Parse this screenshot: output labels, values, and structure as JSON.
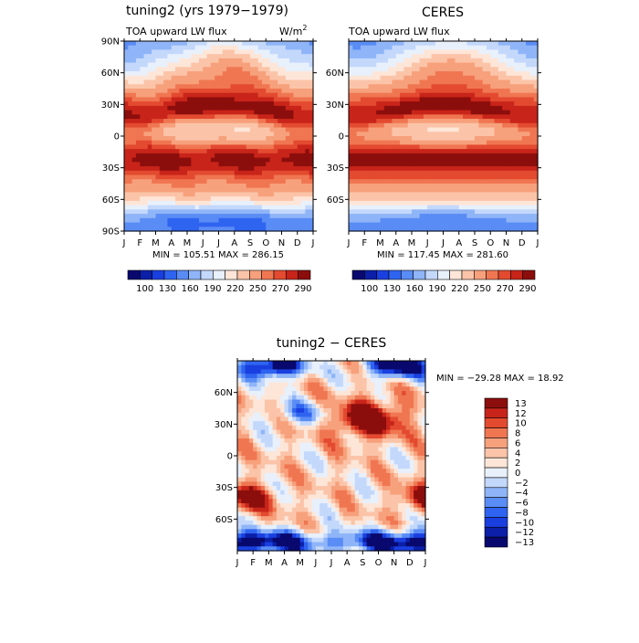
{
  "chart_data": [
    {
      "type": "heatmap",
      "title": "tuning2 (yrs 1979−1979)",
      "subtitle_left": "TOA upward LW flux",
      "units_text": "W/m",
      "units_superscript": "2",
      "x_tick_labels": [
        "J",
        "F",
        "M",
        "A",
        "M",
        "J",
        "J",
        "A",
        "S",
        "O",
        "N",
        "D",
        "J"
      ],
      "y_tick_labels": [
        "90N",
        "60N",
        "30N",
        "0",
        "30S",
        "60S",
        "90S"
      ],
      "y_values": [
        90,
        60,
        30,
        0,
        -30,
        -60,
        -90
      ],
      "stats_text": "MIN = 105.51  MAX = 286.15",
      "min": 105.51,
      "max": 286.15,
      "colorbar_labels": [
        "100",
        "130",
        "160",
        "190",
        "220",
        "250",
        "270",
        "290"
      ],
      "levels": [
        100,
        115,
        130,
        145,
        160,
        175,
        190,
        205,
        220,
        235,
        250,
        260,
        270,
        280,
        290
      ]
    },
    {
      "type": "heatmap",
      "title": "CERES",
      "subtitle_left": "TOA upward LW flux",
      "x_tick_labels": [
        "J",
        "F",
        "M",
        "A",
        "M",
        "J",
        "J",
        "A",
        "S",
        "O",
        "N",
        "D",
        "J"
      ],
      "y_tick_labels": [
        "60N",
        "30N",
        "0",
        "30S",
        "60S"
      ],
      "y_values": [
        60,
        30,
        0,
        -30,
        -60
      ],
      "stats_text": "MIN = 117.45  MAX = 281.60",
      "min": 117.45,
      "max": 281.6,
      "colorbar_labels": [
        "100",
        "130",
        "160",
        "190",
        "220",
        "250",
        "270",
        "290"
      ],
      "levels": [
        100,
        115,
        130,
        145,
        160,
        175,
        190,
        205,
        220,
        235,
        250,
        260,
        270,
        280,
        290
      ]
    },
    {
      "type": "heatmap",
      "title": "tuning2 − CERES",
      "x_tick_labels": [
        "J",
        "F",
        "M",
        "A",
        "M",
        "J",
        "J",
        "A",
        "S",
        "O",
        "N",
        "D",
        "J"
      ],
      "y_tick_labels": [
        "60N",
        "30N",
        "0",
        "30S",
        "60S"
      ],
      "y_values": [
        60,
        30,
        0,
        -30,
        -60
      ],
      "stats_text": "MIN = −29.28  MAX =   18.92",
      "min": -29.28,
      "max": 18.92,
      "colorbar_labels": [
        "13",
        "12",
        "10",
        "8",
        "6",
        "4",
        "2",
        "0",
        "−2",
        "−4",
        "−6",
        "−8",
        "−10",
        "−12",
        "−13"
      ],
      "levels": [
        -13,
        -12,
        -10,
        -8,
        -6,
        -4,
        -2,
        0,
        2,
        4,
        6,
        8,
        10,
        12,
        13
      ]
    }
  ],
  "palette": [
    "#08086e",
    "#0b1fa8",
    "#1a3fe0",
    "#2f64f0",
    "#5a8cf5",
    "#8fb5f8",
    "#c3d8fb",
    "#e8f0fc",
    "#fde6d8",
    "#fbc4a8",
    "#f7a07c",
    "#f07652",
    "#e34a30",
    "#c8241a",
    "#8c0e0c"
  ],
  "palette_lighter": [
    "#b6d0f7",
    "#dce9fc",
    "#fdeee2",
    "#fcd5bd",
    "#f9b597",
    "#f58e6c",
    "#ee6645",
    "#dd3a24",
    "#b81b14",
    "#8b0b0a"
  ]
}
